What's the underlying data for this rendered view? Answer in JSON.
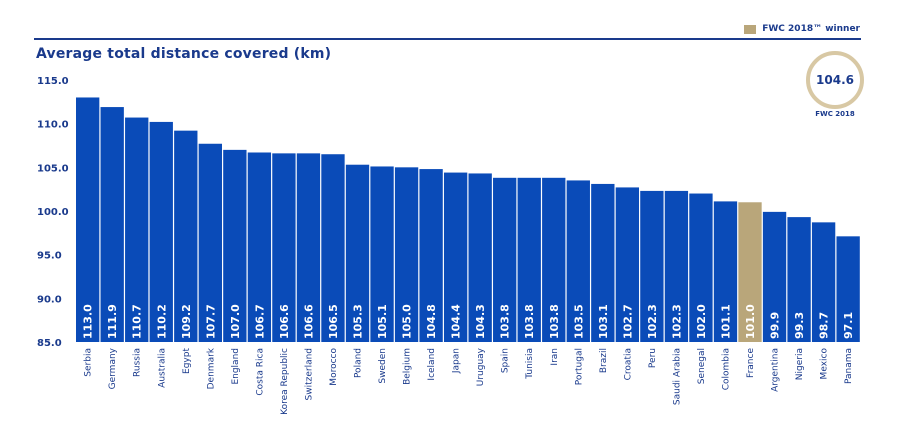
{
  "legend": {
    "label": "FWC 2018™ winner",
    "color": "#b9a67a"
  },
  "badge": {
    "value": "104.6",
    "caption": "FWC 2018"
  },
  "chart_data": {
    "type": "bar",
    "title": "Average total distance covered (km)",
    "xlabel": "",
    "ylabel": "",
    "ylim": [
      85.0,
      115.0
    ],
    "yticks": [
      "115.0",
      "110.0",
      "105.0",
      "100.0",
      "95.0",
      "90.0",
      "85.0"
    ],
    "grid": false,
    "bar_color": "#0a4bb8",
    "highlight_color": "#b9a67a",
    "highlight_category": "France",
    "categories": [
      "Serbia",
      "Germany",
      "Russia",
      "Australia",
      "Egypt",
      "Denmark",
      "England",
      "Costa Rica",
      "Korea Republic",
      "Switzerland",
      "Morocco",
      "Poland",
      "Sweden",
      "Belgium",
      "Iceland",
      "Japan",
      "Uruguay",
      "Spain",
      "Tunisia",
      "Iran",
      "Portugal",
      "Brazil",
      "Croatia",
      "Peru",
      "Saudi Arabia",
      "Senegal",
      "Colombia",
      "France",
      "Argentina",
      "Nigeria",
      "Mexico",
      "Panama"
    ],
    "values": [
      113.0,
      111.9,
      110.7,
      110.2,
      109.2,
      107.7,
      107.0,
      106.7,
      106.6,
      106.6,
      106.5,
      105.3,
      105.1,
      105.0,
      104.8,
      104.4,
      104.3,
      103.8,
      103.8,
      103.8,
      103.5,
      103.1,
      102.7,
      102.3,
      102.3,
      102.0,
      101.1,
      101.0,
      99.9,
      99.3,
      98.7,
      97.1
    ]
  }
}
